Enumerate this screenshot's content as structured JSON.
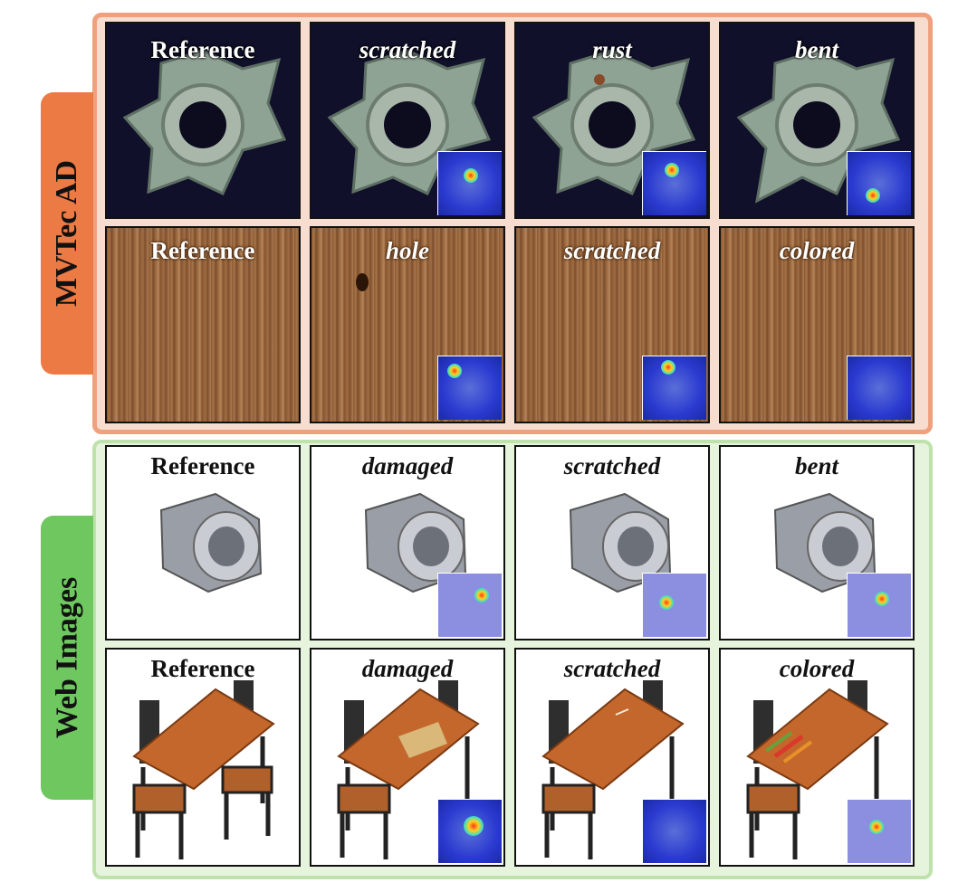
{
  "groups": {
    "mvtec": "MVTec AD",
    "web": "Web Images"
  },
  "rows": {
    "nut4": [
      "Reference",
      "scratched",
      "rust",
      "bent"
    ],
    "wood": [
      "Reference",
      "hole",
      "scratched",
      "colored"
    ],
    "hexnut": [
      "Reference",
      "damaged",
      "scratched",
      "bent"
    ],
    "table": [
      "Reference",
      "damaged",
      "scratched",
      "colored"
    ]
  },
  "colors": {
    "mvtec_panel_bg": "#f6ddd0",
    "mvtec_panel_border": "#efa07d",
    "mvtec_tab": "#ec7a45",
    "web_panel_bg": "#e6f3dd",
    "web_panel_border": "#bfe2ad",
    "web_tab": "#6fc760"
  }
}
